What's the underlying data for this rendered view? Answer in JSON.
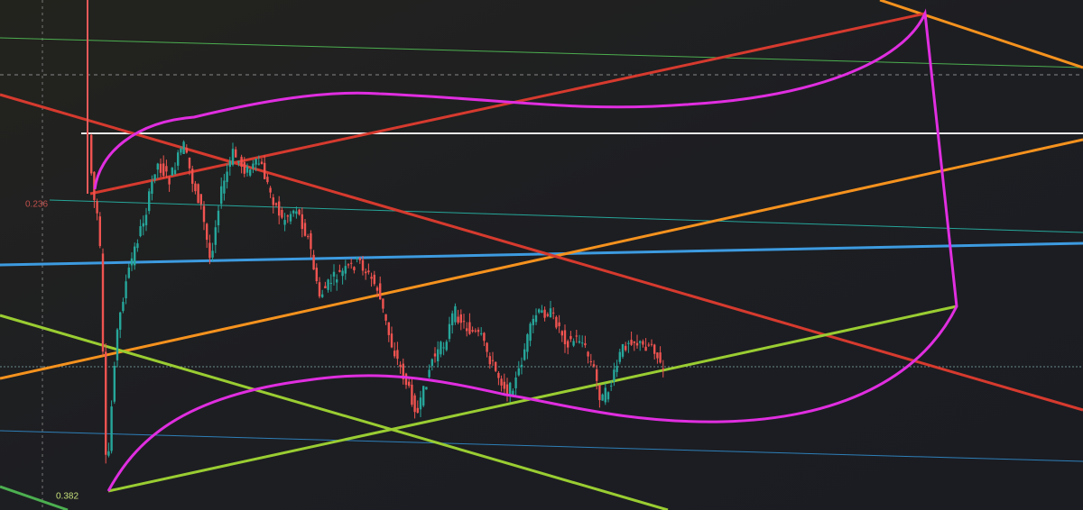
{
  "labels": {
    "fib_upper": "0.236",
    "fib_lower": "0.382"
  }
}
